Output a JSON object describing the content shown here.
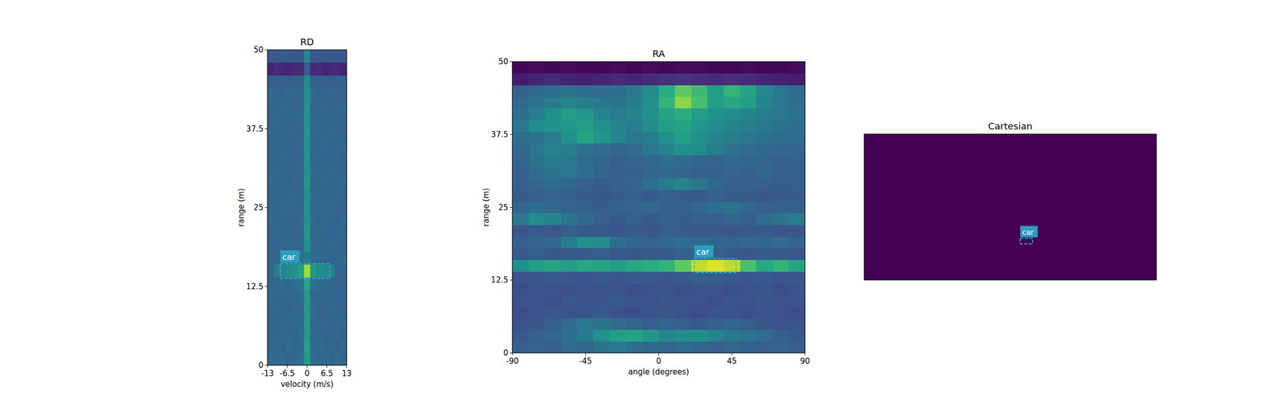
{
  "chart_data": [
    {
      "type": "heatmap",
      "title": "RD",
      "x_label": "velocity (m/s)",
      "y_label": "range (m)",
      "xlim": [
        -13,
        13
      ],
      "ylim": [
        0,
        50
      ],
      "xticks": [
        -13,
        -6.5,
        0,
        6.5,
        13
      ],
      "yticks": [
        0,
        12.5,
        25,
        37.5,
        50
      ],
      "zlim": [
        0,
        1
      ],
      "cells": [
        [
          0.34,
          0.33,
          0.35,
          0.32,
          0.34,
          0.36,
          0.55,
          0.35,
          0.33,
          0.34,
          0.32,
          0.35,
          0.33
        ],
        [
          0.33,
          0.34,
          0.32,
          0.35,
          0.33,
          0.34,
          0.56,
          0.34,
          0.35,
          0.33,
          0.34,
          0.32,
          0.34
        ],
        [
          0.32,
          0.33,
          0.34,
          0.33,
          0.32,
          0.35,
          0.54,
          0.33,
          0.34,
          0.32,
          0.33,
          0.34,
          0.32
        ],
        [
          0.33,
          0.32,
          0.33,
          0.34,
          0.33,
          0.34,
          0.55,
          0.34,
          0.33,
          0.34,
          0.32,
          0.33,
          0.34
        ],
        [
          0.32,
          0.34,
          0.33,
          0.32,
          0.34,
          0.33,
          0.53,
          0.35,
          0.32,
          0.33,
          0.34,
          0.32,
          0.33
        ],
        [
          0.34,
          0.33,
          0.32,
          0.34,
          0.33,
          0.35,
          0.54,
          0.33,
          0.34,
          0.32,
          0.33,
          0.34,
          0.32
        ],
        [
          0.33,
          0.34,
          0.35,
          0.33,
          0.36,
          0.38,
          0.58,
          0.37,
          0.35,
          0.34,
          0.33,
          0.32,
          0.33
        ],
        [
          0.33,
          0.42,
          0.45,
          0.47,
          0.5,
          0.56,
          0.86,
          0.53,
          0.48,
          0.46,
          0.44,
          0.34,
          0.32
        ],
        [
          0.32,
          0.33,
          0.34,
          0.35,
          0.34,
          0.36,
          0.42,
          0.35,
          0.34,
          0.33,
          0.32,
          0.33,
          0.34
        ],
        [
          0.33,
          0.32,
          0.33,
          0.34,
          0.33,
          0.34,
          0.5,
          0.34,
          0.33,
          0.32,
          0.34,
          0.33,
          0.32
        ],
        [
          0.32,
          0.34,
          0.33,
          0.32,
          0.34,
          0.33,
          0.52,
          0.33,
          0.34,
          0.33,
          0.32,
          0.34,
          0.33
        ],
        [
          0.34,
          0.33,
          0.32,
          0.33,
          0.32,
          0.34,
          0.5,
          0.34,
          0.32,
          0.34,
          0.33,
          0.32,
          0.34
        ],
        [
          0.33,
          0.32,
          0.34,
          0.33,
          0.34,
          0.33,
          0.51,
          0.33,
          0.34,
          0.33,
          0.34,
          0.33,
          0.32
        ],
        [
          0.32,
          0.33,
          0.33,
          0.34,
          0.33,
          0.32,
          0.5,
          0.34,
          0.33,
          0.32,
          0.33,
          0.34,
          0.33
        ],
        [
          0.34,
          0.32,
          0.33,
          0.32,
          0.34,
          0.33,
          0.52,
          0.33,
          0.32,
          0.34,
          0.32,
          0.33,
          0.34
        ],
        [
          0.33,
          0.34,
          0.32,
          0.33,
          0.32,
          0.34,
          0.5,
          0.34,
          0.33,
          0.33,
          0.34,
          0.32,
          0.33
        ],
        [
          0.32,
          0.33,
          0.34,
          0.32,
          0.33,
          0.33,
          0.51,
          0.32,
          0.34,
          0.32,
          0.33,
          0.34,
          0.32
        ],
        [
          0.33,
          0.32,
          0.33,
          0.34,
          0.32,
          0.34,
          0.5,
          0.33,
          0.32,
          0.34,
          0.32,
          0.33,
          0.34
        ],
        [
          0.34,
          0.33,
          0.32,
          0.33,
          0.34,
          0.32,
          0.52,
          0.34,
          0.33,
          0.33,
          0.34,
          0.32,
          0.33
        ],
        [
          0.32,
          0.34,
          0.33,
          0.32,
          0.33,
          0.34,
          0.5,
          0.33,
          0.34,
          0.32,
          0.33,
          0.34,
          0.32
        ],
        [
          0.33,
          0.32,
          0.34,
          0.33,
          0.32,
          0.33,
          0.51,
          0.32,
          0.33,
          0.34,
          0.32,
          0.33,
          0.34
        ],
        [
          0.34,
          0.33,
          0.32,
          0.34,
          0.33,
          0.32,
          0.5,
          0.34,
          0.32,
          0.33,
          0.34,
          0.32,
          0.33
        ],
        [
          0.3,
          0.31,
          0.3,
          0.29,
          0.3,
          0.31,
          0.48,
          0.3,
          0.31,
          0.3,
          0.29,
          0.3,
          0.31
        ],
        [
          0.1,
          0.12,
          0.11,
          0.1,
          0.12,
          0.11,
          0.3,
          0.11,
          0.12,
          0.1,
          0.11,
          0.12,
          0.1
        ],
        [
          0.28,
          0.27,
          0.29,
          0.28,
          0.27,
          0.28,
          0.45,
          0.28,
          0.27,
          0.29,
          0.28,
          0.27,
          0.28
        ]
      ],
      "boxes": [
        {
          "label": "car",
          "x": [
            -8.8,
            7.5
          ],
          "y": [
            13.8,
            16.1
          ]
        }
      ]
    },
    {
      "type": "heatmap",
      "title": "RA",
      "x_label": "angle (degrees)",
      "y_label": "range (m)",
      "xlim": [
        -90,
        90
      ],
      "ylim": [
        0,
        50
      ],
      "xticks": [
        -90,
        -45,
        0,
        45,
        90
      ],
      "yticks": [
        0,
        12.5,
        25,
        37.5,
        50
      ],
      "zlim": [
        0,
        1
      ],
      "cells": [
        [
          0.3,
          0.32,
          0.3,
          0.35,
          0.33,
          0.38,
          0.4,
          0.36,
          0.34,
          0.33,
          0.35,
          0.32,
          0.3,
          0.33,
          0.31,
          0.3,
          0.32,
          0.3
        ],
        [
          0.28,
          0.3,
          0.33,
          0.36,
          0.42,
          0.5,
          0.55,
          0.58,
          0.52,
          0.45,
          0.48,
          0.5,
          0.44,
          0.4,
          0.38,
          0.35,
          0.3,
          0.28
        ],
        [
          0.25,
          0.27,
          0.3,
          0.35,
          0.4,
          0.38,
          0.35,
          0.33,
          0.3,
          0.32,
          0.3,
          0.28,
          0.3,
          0.33,
          0.3,
          0.27,
          0.25,
          0.26
        ],
        [
          0.24,
          0.25,
          0.27,
          0.25,
          0.26,
          0.28,
          0.25,
          0.24,
          0.26,
          0.27,
          0.25,
          0.24,
          0.26,
          0.25,
          0.24,
          0.26,
          0.25,
          0.24
        ],
        [
          0.25,
          0.26,
          0.24,
          0.27,
          0.25,
          0.26,
          0.28,
          0.26,
          0.25,
          0.27,
          0.26,
          0.25,
          0.24,
          0.26,
          0.25,
          0.27,
          0.25,
          0.26
        ],
        [
          0.24,
          0.26,
          0.25,
          0.24,
          0.27,
          0.25,
          0.26,
          0.24,
          0.25,
          0.26,
          0.24,
          0.25,
          0.26,
          0.24,
          0.25,
          0.26,
          0.24,
          0.25
        ],
        [
          0.26,
          0.27,
          0.28,
          0.27,
          0.26,
          0.28,
          0.27,
          0.29,
          0.28,
          0.27,
          0.28,
          0.3,
          0.29,
          0.28,
          0.27,
          0.28,
          0.26,
          0.27
        ],
        [
          0.5,
          0.55,
          0.58,
          0.55,
          0.6,
          0.58,
          0.55,
          0.6,
          0.62,
          0.65,
          0.75,
          0.9,
          0.95,
          0.9,
          0.7,
          0.6,
          0.65,
          0.58
        ],
        [
          0.28,
          0.3,
          0.27,
          0.29,
          0.28,
          0.3,
          0.28,
          0.27,
          0.29,
          0.28,
          0.3,
          0.32,
          0.3,
          0.28,
          0.27,
          0.29,
          0.28,
          0.27
        ],
        [
          0.3,
          0.32,
          0.34,
          0.42,
          0.5,
          0.48,
          0.36,
          0.33,
          0.32,
          0.34,
          0.36,
          0.35,
          0.33,
          0.32,
          0.34,
          0.33,
          0.35,
          0.32
        ],
        [
          0.26,
          0.28,
          0.27,
          0.3,
          0.28,
          0.27,
          0.26,
          0.28,
          0.27,
          0.3,
          0.29,
          0.27,
          0.28,
          0.26,
          0.27,
          0.28,
          0.26,
          0.27
        ],
        [
          0.4,
          0.48,
          0.45,
          0.38,
          0.34,
          0.3,
          0.28,
          0.3,
          0.28,
          0.3,
          0.29,
          0.31,
          0.3,
          0.33,
          0.3,
          0.35,
          0.38,
          0.42
        ],
        [
          0.33,
          0.36,
          0.34,
          0.32,
          0.3,
          0.29,
          0.3,
          0.32,
          0.34,
          0.31,
          0.3,
          0.33,
          0.36,
          0.38,
          0.33,
          0.3,
          0.31,
          0.3
        ],
        [
          0.28,
          0.3,
          0.32,
          0.3,
          0.28,
          0.27,
          0.29,
          0.3,
          0.28,
          0.3,
          0.29,
          0.28,
          0.3,
          0.29,
          0.28,
          0.27,
          0.28,
          0.29
        ],
        [
          0.3,
          0.33,
          0.35,
          0.33,
          0.3,
          0.28,
          0.3,
          0.32,
          0.36,
          0.42,
          0.45,
          0.4,
          0.33,
          0.3,
          0.31,
          0.3,
          0.29,
          0.3
        ],
        [
          0.3,
          0.35,
          0.38,
          0.4,
          0.36,
          0.32,
          0.3,
          0.31,
          0.33,
          0.34,
          0.32,
          0.3,
          0.31,
          0.32,
          0.3,
          0.33,
          0.31,
          0.3
        ],
        [
          0.32,
          0.38,
          0.42,
          0.4,
          0.35,
          0.33,
          0.3,
          0.32,
          0.34,
          0.36,
          0.35,
          0.33,
          0.32,
          0.34,
          0.33,
          0.32,
          0.3,
          0.31
        ],
        [
          0.34,
          0.4,
          0.44,
          0.42,
          0.38,
          0.35,
          0.33,
          0.35,
          0.4,
          0.45,
          0.5,
          0.48,
          0.42,
          0.38,
          0.35,
          0.34,
          0.33,
          0.32
        ],
        [
          0.35,
          0.38,
          0.42,
          0.5,
          0.58,
          0.52,
          0.45,
          0.4,
          0.42,
          0.5,
          0.56,
          0.5,
          0.45,
          0.42,
          0.4,
          0.38,
          0.36,
          0.35
        ],
        [
          0.4,
          0.48,
          0.5,
          0.52,
          0.55,
          0.5,
          0.44,
          0.42,
          0.48,
          0.55,
          0.58,
          0.52,
          0.48,
          0.45,
          0.42,
          0.4,
          0.38,
          0.36
        ],
        [
          0.36,
          0.42,
          0.5,
          0.55,
          0.52,
          0.45,
          0.42,
          0.45,
          0.5,
          0.58,
          0.62,
          0.55,
          0.5,
          0.48,
          0.45,
          0.42,
          0.4,
          0.38
        ],
        [
          0.34,
          0.38,
          0.42,
          0.45,
          0.42,
          0.4,
          0.38,
          0.42,
          0.5,
          0.65,
          0.82,
          0.7,
          0.55,
          0.6,
          0.55,
          0.45,
          0.4,
          0.36
        ],
        [
          0.3,
          0.34,
          0.36,
          0.38,
          0.36,
          0.35,
          0.36,
          0.4,
          0.48,
          0.62,
          0.75,
          0.68,
          0.55,
          0.65,
          0.58,
          0.46,
          0.4,
          0.35
        ],
        [
          0.08,
          0.1,
          0.12,
          0.1,
          0.09,
          0.1,
          0.11,
          0.1,
          0.12,
          0.14,
          0.15,
          0.13,
          0.12,
          0.13,
          0.12,
          0.1,
          0.09,
          0.08
        ],
        [
          0.02,
          0.03,
          0.02,
          0.03,
          0.02,
          0.02,
          0.03,
          0.02,
          0.03,
          0.02,
          0.03,
          0.03,
          0.02,
          0.02,
          0.03,
          0.02,
          0.02,
          0.03
        ]
      ],
      "boxes": [
        {
          "label": "car",
          "x": [
            21.9,
            47.6
          ],
          "y": [
            13.8,
            16.2
          ]
        }
      ]
    },
    {
      "type": "heatmap",
      "title": "Cartesian",
      "tick_labels": false,
      "xlim": [
        -50,
        50
      ],
      "ylim": [
        0,
        50
      ],
      "zlim": [
        0,
        1
      ],
      "cells": [
        [
          0
        ]
      ],
      "boxes": [
        {
          "label": "car",
          "x": [
            3.4,
            7.6
          ],
          "y": [
            12.4,
            14.3
          ]
        }
      ]
    }
  ]
}
